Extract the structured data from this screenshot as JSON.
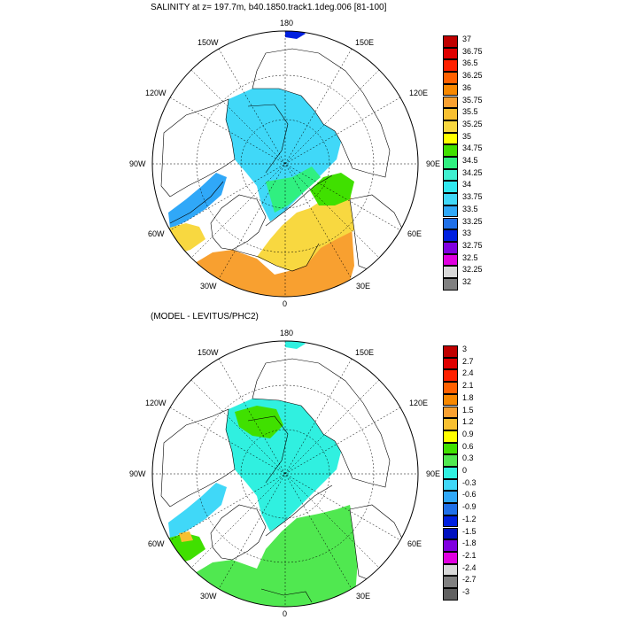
{
  "panels": [
    {
      "title": "SALINITY at z= 197.7m, b40.1850.track1.1deg.006 [81-100]",
      "lon_labels": [
        "180",
        "150E",
        "120E",
        "90E",
        "60E",
        "30E",
        "0",
        "30W",
        "60W",
        "90W",
        "120W",
        "150W"
      ],
      "colorbar": {
        "labels": [
          "37",
          "36.75",
          "36.5",
          "36.25",
          "36",
          "35.75",
          "35.5",
          "35.25",
          "35",
          "34.75",
          "34.5",
          "34.25",
          "34",
          "33.75",
          "33.5",
          "33.25",
          "33",
          "32.75",
          "32.5",
          "32.25",
          "32"
        ],
        "colors": [
          "#c00000",
          "#e00000",
          "#ff2000",
          "#ff6000",
          "#f88800",
          "#f8a030",
          "#f8c030",
          "#f8d840",
          "#ffff00",
          "#40e000",
          "#30f080",
          "#40f0d0",
          "#30e8f0",
          "#40d8f8",
          "#30a8f8",
          "#2070e8",
          "#0020e0",
          "#8000e0",
          "#e000e0",
          "#d8d8d8",
          "#808080"
        ]
      }
    },
    {
      "title": "(MODEL - LEVITUS/PHC2)",
      "lon_labels": [
        "180",
        "150E",
        "120E",
        "90E",
        "60E",
        "30E",
        "0",
        "30W",
        "60W",
        "90W",
        "120W",
        "150W"
      ],
      "colorbar": {
        "labels": [
          "3",
          "2.7",
          "2.4",
          "2.1",
          "1.8",
          "1.5",
          "1.2",
          "0.9",
          "0.6",
          "0.3",
          "0",
          "-0.3",
          "-0.6",
          "-0.9",
          "-1.2",
          "-1.5",
          "-1.8",
          "-2.1",
          "-2.4",
          "-2.7",
          "-3"
        ],
        "colors": [
          "#c00000",
          "#e00000",
          "#ff2000",
          "#ff6000",
          "#f88800",
          "#f8a030",
          "#f8c030",
          "#ffff00",
          "#40e000",
          "#50e850",
          "#30f0e0",
          "#40d8f8",
          "#30a8f8",
          "#2070e8",
          "#0020e0",
          "#0010c0",
          "#8000e0",
          "#e000e0",
          "#d8d8d8",
          "#808080",
          "#606060"
        ]
      }
    }
  ]
}
